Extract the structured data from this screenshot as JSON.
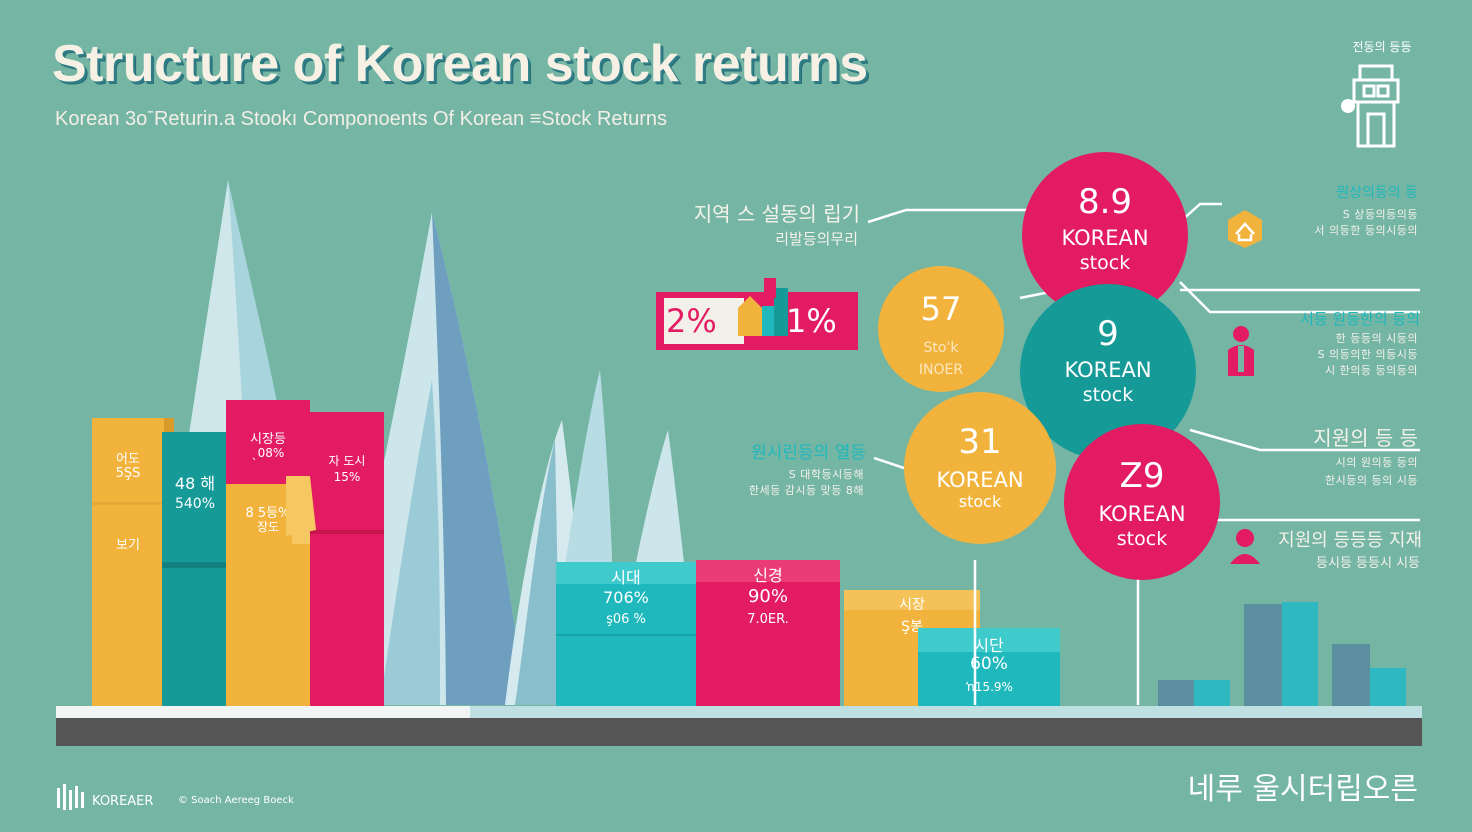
{
  "header": {
    "title": "Structure of Korean stock returns",
    "subtitle": "Korean 3oˉReturin.a Stookı Componoents Of Korean ≡Stock Returns"
  },
  "colors": {
    "background": "#74b5a4",
    "yellow": "#f2b33d",
    "teal": "#159a98",
    "cyan": "#1fb8bd",
    "magenta": "#e21b62",
    "ground": "#555555"
  },
  "left_bars": [
    {
      "line1": "어도",
      "line2": "5ŞS",
      "line3": "보기"
    },
    {
      "line1": "48 해",
      "line2": "540%"
    },
    {
      "line1": "8 5등%",
      "line2": "장도",
      "top1": "시장등",
      "top2": "ˎ08%"
    },
    {
      "line1": "자 도시",
      "line2": "15%"
    }
  ],
  "mid_bars": [
    {
      "line1": "시대",
      "line2": "706%",
      "line3": "ş06 %"
    },
    {
      "line1": "신경",
      "line2": "90%",
      "line3": "7.0ER."
    },
    {
      "line1": "시장",
      "line2": "Ş봉"
    },
    {
      "line1": "시단",
      "line2": "60%",
      "line3": "ŉ15.9%"
    }
  ],
  "callout": {
    "left": "2%",
    "right": "1%"
  },
  "left_labels": {
    "top_line1": "지역 스 설동의 립기",
    "top_line2": "리발등의무리",
    "mid_line1": "원시린등의 열등",
    "mid_line2": "S 대학등시등해",
    "mid_line3": "한세등 감시등 맞등 8해"
  },
  "circles": [
    {
      "num": "8.9",
      "l1": "KOREAN",
      "l2": "stock"
    },
    {
      "num": "57",
      "l1": "Stoˈk",
      "l2": "INOER"
    },
    {
      "num": "9",
      "l1": "KOREAN",
      "l2": "stock"
    },
    {
      "num": "31",
      "l1": "KOREAN",
      "l2": "stock"
    },
    {
      "num": "Z9",
      "l1": "KOREAN",
      "l2": "stock"
    }
  ],
  "right_labels": [
    {
      "title": "원상의등의 등",
      "s1": "S 상등의등의등",
      "s2": "서 의등한 등의시등의"
    },
    {
      "title": "서등 원등한의 등의",
      "s1": "한 등등의 시등의",
      "s2": "S 의등의한 의등시등",
      "s3": "시 한의등 등의등의"
    },
    {
      "title": "지원의 등 등",
      "s1": "시의 원의등 등의",
      "s2": "한시등의 등의 시등"
    },
    {
      "title": "지원의 등등등 지재",
      "s1": "등시등 등등시 시등"
    }
  ],
  "footer": {
    "logo_text": "KOREAER",
    "credit": "© Soach Aereeg Boeck",
    "right_text": "네루 울시터립오른"
  },
  "badge_text": "전동의 등등"
}
